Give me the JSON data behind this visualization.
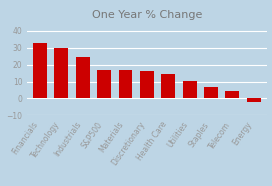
{
  "title": "One Year % Change",
  "categories": [
    "Financials",
    "Technology",
    "Industrials",
    "S&P500",
    "Materials",
    "Discretionary",
    "Health Care",
    "Utilities",
    "Staples",
    "Telecom",
    "Energy"
  ],
  "values": [
    33,
    30,
    24.5,
    17,
    17,
    16.5,
    14.5,
    10.5,
    7,
    4.5,
    -2
  ],
  "bar_color": "#cc0000",
  "background_color": "#bdd5e5",
  "ylim": [
    -10,
    45
  ],
  "yticks": [
    -10,
    0,
    10,
    20,
    30,
    40
  ],
  "title_fontsize": 8,
  "tick_fontsize": 5.5,
  "title_color": "#777777",
  "tick_color": "#999999"
}
